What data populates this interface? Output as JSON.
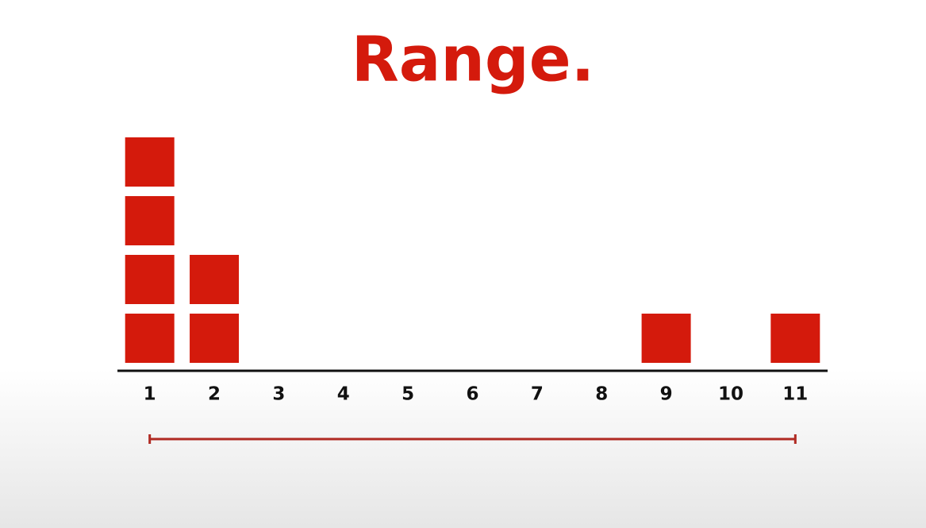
{
  "chart_data": {
    "type": "dotplot",
    "title": "Range.",
    "values": [
      1,
      1,
      1,
      1,
      2,
      2,
      9,
      11
    ],
    "color": "#d41a0c",
    "xlim": [
      0.5,
      11.5
    ],
    "xticks": [
      1,
      2,
      3,
      4,
      5,
      6,
      7,
      8,
      9,
      10,
      11
    ],
    "range_color": "#b02a22"
  }
}
